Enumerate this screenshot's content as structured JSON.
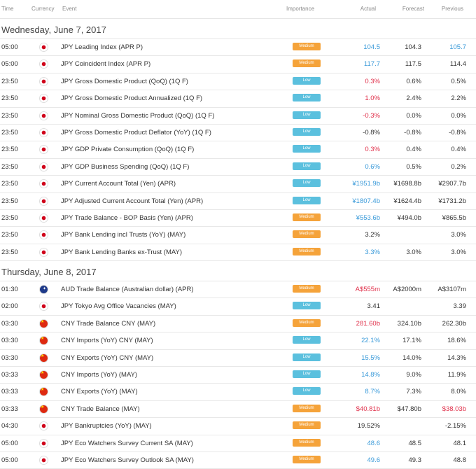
{
  "header": {
    "time": "Time",
    "currency": "Currency",
    "event": "Event",
    "importance": "Importance",
    "actual": "Actual",
    "forecast": "Forecast",
    "previous": "Previous"
  },
  "colors": {
    "blue": "#3a9ad9",
    "red": "#e0314b",
    "dark": "#333333",
    "medium": "#f5a33a",
    "low": "#5bc0de"
  },
  "days": [
    {
      "label": "Wednesday, June 7, 2017",
      "rows": [
        {
          "time": "05:00",
          "flag": "jp",
          "event": "JPY Leading Index (APR P)",
          "importance": "Medium",
          "actual": "104.5",
          "actual_color": "blue",
          "forecast": "104.3",
          "previous": "105.7",
          "previous_color": "blue"
        },
        {
          "time": "05:00",
          "flag": "jp",
          "event": "JPY Coincident Index (APR P)",
          "importance": "Medium",
          "actual": "117.7",
          "actual_color": "blue",
          "forecast": "117.5",
          "previous": "114.4",
          "previous_color": "dark"
        },
        {
          "time": "23:50",
          "flag": "jp",
          "event": "JPY Gross Domestic Product (QoQ) (1Q F)",
          "importance": "Low",
          "actual": "0.3%",
          "actual_color": "red",
          "forecast": "0.6%",
          "previous": "0.5%",
          "previous_color": "dark"
        },
        {
          "time": "23:50",
          "flag": "jp",
          "event": "JPY Gross Domestic Product Annualized (1Q F)",
          "importance": "Low",
          "actual": "1.0%",
          "actual_color": "red",
          "forecast": "2.4%",
          "previous": "2.2%",
          "previous_color": "dark"
        },
        {
          "time": "23:50",
          "flag": "jp",
          "event": "JPY Nominal Gross Domestic Product (QoQ) (1Q F)",
          "importance": "Low",
          "actual": "-0.3%",
          "actual_color": "red",
          "forecast": "0.0%",
          "previous": "0.0%",
          "previous_color": "dark"
        },
        {
          "time": "23:50",
          "flag": "jp",
          "event": "JPY Gross Domestic Product Deflator (YoY) (1Q F)",
          "importance": "Low",
          "actual": "-0.8%",
          "actual_color": "dark",
          "forecast": "-0.8%",
          "previous": "-0.8%",
          "previous_color": "dark"
        },
        {
          "time": "23:50",
          "flag": "jp",
          "event": "JPY GDP Private Consumption (QoQ) (1Q F)",
          "importance": "Low",
          "actual": "0.3%",
          "actual_color": "red",
          "forecast": "0.4%",
          "previous": "0.4%",
          "previous_color": "dark"
        },
        {
          "time": "23:50",
          "flag": "jp",
          "event": "JPY GDP Business Spending (QoQ) (1Q F)",
          "importance": "Low",
          "actual": "0.6%",
          "actual_color": "blue",
          "forecast": "0.5%",
          "previous": "0.2%",
          "previous_color": "dark"
        },
        {
          "time": "23:50",
          "flag": "jp",
          "event": "JPY Current Account Total (Yen) (APR)",
          "importance": "Low",
          "actual": "¥1951.9b",
          "actual_color": "blue",
          "forecast": "¥1698.8b",
          "previous": "¥2907.7b",
          "previous_color": "dark"
        },
        {
          "time": "23:50",
          "flag": "jp",
          "event": "JPY Adjusted Current Account Total (Yen) (APR)",
          "importance": "Low",
          "actual": "¥1807.4b",
          "actual_color": "blue",
          "forecast": "¥1624.4b",
          "previous": "¥1731.2b",
          "previous_color": "dark"
        },
        {
          "time": "23:50",
          "flag": "jp",
          "event": "JPY Trade Balance - BOP Basis (Yen) (APR)",
          "importance": "Medium",
          "actual": "¥553.6b",
          "actual_color": "blue",
          "forecast": "¥494.0b",
          "previous": "¥865.5b",
          "previous_color": "dark"
        },
        {
          "time": "23:50",
          "flag": "jp",
          "event": "JPY Bank Lending incl Trusts (YoY) (MAY)",
          "importance": "Medium",
          "actual": "3.2%",
          "actual_color": "dark",
          "forecast": "",
          "previous": "3.0%",
          "previous_color": "dark"
        },
        {
          "time": "23:50",
          "flag": "jp",
          "event": "JPY Bank Lending Banks ex-Trust (MAY)",
          "importance": "Medium",
          "actual": "3.3%",
          "actual_color": "blue",
          "forecast": "3.0%",
          "previous": "3.0%",
          "previous_color": "dark"
        }
      ]
    },
    {
      "label": "Thursday, June 8, 2017",
      "rows": [
        {
          "time": "01:30",
          "flag": "au",
          "event": "AUD Trade Balance (Australian dollar) (APR)",
          "importance": "Medium",
          "actual": "A$555m",
          "actual_color": "red",
          "forecast": "A$2000m",
          "previous": "A$3107m",
          "previous_color": "dark"
        },
        {
          "time": "02:00",
          "flag": "jp",
          "event": "JPY Tokyo Avg Office Vacancies (MAY)",
          "importance": "Low",
          "actual": "3.41",
          "actual_color": "dark",
          "forecast": "",
          "previous": "3.39",
          "previous_color": "dark"
        },
        {
          "time": "03:30",
          "flag": "cn",
          "event": "CNY Trade Balance CNY (MAY)",
          "importance": "Medium",
          "actual": "281.60b",
          "actual_color": "red",
          "forecast": "324.10b",
          "previous": "262.30b",
          "previous_color": "dark"
        },
        {
          "time": "03:30",
          "flag": "cn",
          "event": "CNY Imports (YoY) CNY (MAY)",
          "importance": "Low",
          "actual": "22.1%",
          "actual_color": "blue",
          "forecast": "17.1%",
          "previous": "18.6%",
          "previous_color": "dark"
        },
        {
          "time": "03:30",
          "flag": "cn",
          "event": "CNY Exports (YoY) CNY (MAY)",
          "importance": "Low",
          "actual": "15.5%",
          "actual_color": "blue",
          "forecast": "14.0%",
          "previous": "14.3%",
          "previous_color": "dark"
        },
        {
          "time": "03:33",
          "flag": "cn",
          "event": "CNY Imports (YoY) (MAY)",
          "importance": "Low",
          "actual": "14.8%",
          "actual_color": "blue",
          "forecast": "9.0%",
          "previous": "11.9%",
          "previous_color": "dark"
        },
        {
          "time": "03:33",
          "flag": "cn",
          "event": "CNY Exports (YoY) (MAY)",
          "importance": "Low",
          "actual": "8.7%",
          "actual_color": "blue",
          "forecast": "7.3%",
          "previous": "8.0%",
          "previous_color": "dark"
        },
        {
          "time": "03:33",
          "flag": "cn",
          "event": "CNY Trade Balance (MAY)",
          "importance": "Medium",
          "actual": "$40.81b",
          "actual_color": "red",
          "forecast": "$47.80b",
          "previous": "$38.03b",
          "previous_color": "red"
        },
        {
          "time": "04:30",
          "flag": "jp",
          "event": "JPY Bankruptcies (YoY) (MAY)",
          "importance": "Medium",
          "actual": "19.52%",
          "actual_color": "dark",
          "forecast": "",
          "previous": "-2.15%",
          "previous_color": "dark"
        },
        {
          "time": "05:00",
          "flag": "jp",
          "event": "JPY Eco Watchers Survey Current SA (MAY)",
          "importance": "Medium",
          "actual": "48.6",
          "actual_color": "blue",
          "forecast": "48.5",
          "previous": "48.1",
          "previous_color": "dark"
        },
        {
          "time": "05:00",
          "flag": "jp",
          "event": "JPY Eco Watchers Survey Outlook SA (MAY)",
          "importance": "Medium",
          "actual": "49.6",
          "actual_color": "blue",
          "forecast": "49.3",
          "previous": "48.8",
          "previous_color": "dark"
        }
      ]
    }
  ]
}
